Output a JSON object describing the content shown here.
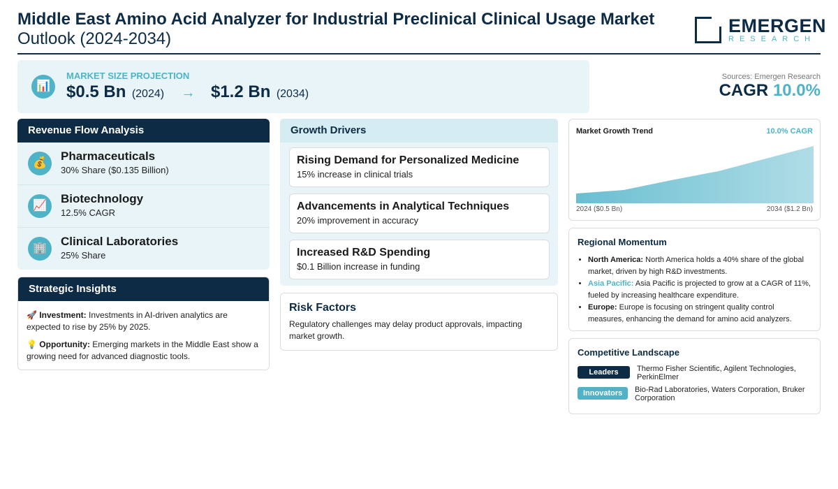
{
  "header": {
    "title_line1": "Middle East Amino Acid Analyzer for Industrial Preclinical Clinical Usage Market",
    "title_line2": "Outlook (2024-2034)",
    "logo_name": "EMERGEN",
    "logo_sub": "RESEARCH"
  },
  "projection": {
    "label": "MARKET SIZE PROJECTION",
    "icon": "bar-chart-icon",
    "start_value": "$0.5 Bn",
    "start_year": "(2024)",
    "arrow": "→",
    "end_value": "$1.2 Bn",
    "end_year": "(2034)"
  },
  "summary": {
    "source": "Sources: Emergen Research",
    "cagr_label": "CAGR",
    "cagr_value": "10.0%"
  },
  "revenue": {
    "title": "Revenue Flow Analysis",
    "items": [
      {
        "icon": "money-bag-icon",
        "glyph": "💰",
        "name": "Pharmaceuticals",
        "sub": "30% Share ($0.135 Billion)"
      },
      {
        "icon": "trend-up-icon",
        "glyph": "📈",
        "name": "Biotechnology",
        "sub": "12.5% CAGR"
      },
      {
        "icon": "building-icon",
        "glyph": "🏢",
        "name": "Clinical Laboratories",
        "sub": "25% Share"
      }
    ]
  },
  "strategic": {
    "title": "Strategic Insights",
    "investment_label": "Investment:",
    "investment_text": "Investments in AI-driven analytics are expected to rise by 25% by 2025.",
    "opportunity_label": "Opportunity:",
    "opportunity_text": "Emerging markets in the Middle East show a growing need for advanced diagnostic tools."
  },
  "drivers": {
    "title": "Growth Drivers",
    "items": [
      {
        "title": "Rising Demand for Personalized Medicine",
        "sub": "15% increase in clinical trials"
      },
      {
        "title": "Advancements in Analytical Techniques",
        "sub": "20% improvement in accuracy"
      },
      {
        "title": "Increased R&D Spending",
        "sub": "$0.1 Billion increase in funding"
      }
    ]
  },
  "risk": {
    "title": "Risk Factors",
    "text": "Regulatory challenges may delay product approvals, impacting market growth."
  },
  "trend": {
    "title": "Market Growth Trend",
    "cagr": "10.0% CAGR",
    "start_label": "2024 ($0.5 Bn)",
    "end_label": "2034 ($1.2 Bn)",
    "fill_color": "#4fb3c8"
  },
  "regional": {
    "title": "Regional Momentum",
    "items": [
      {
        "label": "North America:",
        "text": "North America holds a 40% share of the global market, driven by high R&D investments."
      },
      {
        "label": "Asia Pacific:",
        "text": "Asia Pacific is projected to grow at a CAGR of 11%, fueled by increasing healthcare expenditure."
      },
      {
        "label": "Europe:",
        "text": "Europe is focusing on stringent quality control measures, enhancing the demand for amino acid analyzers."
      }
    ]
  },
  "competitive": {
    "title": "Competitive Landscape",
    "leaders_label": "Leaders",
    "leaders_text": "Thermo Fisher Scientific, Agilent Technologies, PerkinElmer",
    "innovators_label": "Innovators",
    "innovators_text": "Bio-Rad Laboratories, Waters Corporation, Bruker Corporation"
  },
  "colors": {
    "navy": "#0d2b45",
    "teal": "#4fb3c8",
    "panel_bg": "#e8f4f7"
  }
}
